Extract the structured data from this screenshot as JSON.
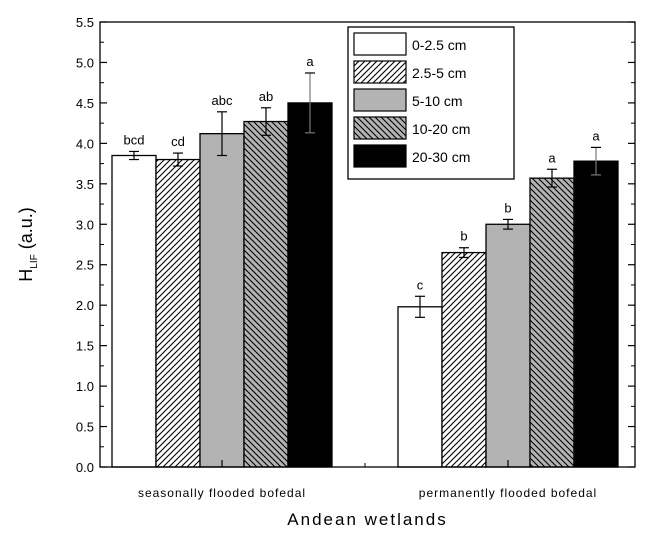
{
  "chart_data": {
    "type": "bar",
    "categories": [
      "seasonally flooded bofedal",
      "permanently flooded bofedal"
    ],
    "series": [
      {
        "name": "0-2.5 cm",
        "values": [
          3.85,
          1.98
        ],
        "errors": [
          0.05,
          0.13
        ],
        "labels": [
          "bcd",
          "c"
        ],
        "pattern": "white"
      },
      {
        "name": "2.5-5 cm",
        "values": [
          3.8,
          2.65
        ],
        "errors": [
          0.08,
          0.06
        ],
        "labels": [
          "cd",
          "b"
        ],
        "pattern": "hatch-right"
      },
      {
        "name": "5-10 cm",
        "values": [
          4.12,
          3.0
        ],
        "errors": [
          0.27,
          0.06
        ],
        "labels": [
          "abc",
          "b"
        ],
        "pattern": "gray"
      },
      {
        "name": "10-20 cm",
        "values": [
          4.27,
          3.57
        ],
        "errors": [
          0.17,
          0.11
        ],
        "labels": [
          "ab",
          "a"
        ],
        "pattern": "hatch-left"
      },
      {
        "name": "20-30 cm",
        "values": [
          4.5,
          3.78
        ],
        "errors": [
          0.37,
          0.17
        ],
        "labels": [
          "a",
          "a"
        ],
        "pattern": "black"
      }
    ],
    "xlabel": "Andean wetlands",
    "ylabel": {
      "main": "H",
      "sub": "LIF",
      "unit": " (a.u.)"
    },
    "ylim": [
      0,
      5.5
    ],
    "yticks": [
      "0.0",
      "0.5",
      "1.0",
      "1.5",
      "2.0",
      "2.5",
      "3.0",
      "3.5",
      "4.0",
      "4.5",
      "5.0",
      "5.5"
    ],
    "grid": false,
    "legend_position": "top-right",
    "colors": {
      "white": "#ffffff",
      "gray": "#b3b3b3",
      "black": "#000000",
      "axis": "#000000"
    }
  }
}
